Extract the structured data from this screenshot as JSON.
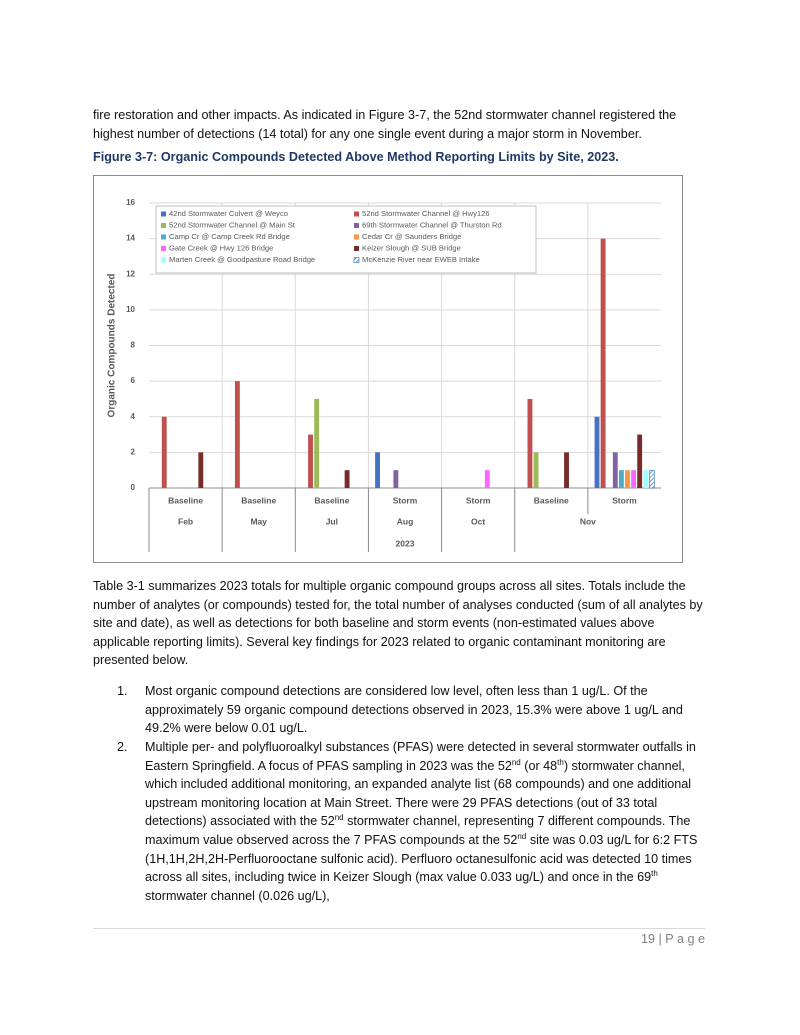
{
  "document": {
    "paragraph_1": "fire restoration and other impacts.  As indicated in Figure 3-7, the 52nd stormwater channel registered the highest number of detections (14 total) for any one single event during a major storm in November.",
    "figure_caption": "Figure 3-7: Organic Compounds Detected Above Method Reporting Limits by Site, 2023.",
    "paragraph_2": "Table 3-1 summarizes 2023 totals for multiple organic compound groups across all sites.  Totals include the number of analytes (or compounds) tested for, the total number of analyses conducted (sum of all analytes by site and date), as well as detections for both baseline and storm events (non-estimated values above applicable reporting limits).  Several key findings for 2023 related to organic contaminant monitoring are presented below.",
    "list": [
      {
        "number": "1.",
        "runs": [
          {
            "text": "Most organic compound detections are considered low level, often less than 1 ug/L.   Of the approximately 59 organic compound detections observed in 2023, 15.3% were above 1 ug/L and 49.2% were below 0.01 ug/L."
          }
        ]
      },
      {
        "number": "2.",
        "runs": [
          {
            "text": "Multiple per- and polyfluoroalkyl substances (PFAS) were detected in several stormwater outfalls in Eastern Springfield.  A focus of PFAS sampling in 2023 was the 52"
          },
          {
            "sup": "nd"
          },
          {
            "text": " (or 48"
          },
          {
            "sup": "th"
          },
          {
            "text": ") stormwater channel, which included additional monitoring, an expanded analyte list (68 compounds) and one additional upstream monitoring location at Main Street.  There were 29 PFAS detections (out of 33 total detections) associated with the 52"
          },
          {
            "sup": "nd"
          },
          {
            "text": " stormwater channel, representing 7 different compounds.  The maximum value observed across the 7 PFAS compounds at the 52"
          },
          {
            "sup": "nd"
          },
          {
            "text": " site was 0.03 ug/L for 6:2 FTS (1H,1H,2H,2H-Perfluorooctane sulfonic acid).  Perfluoro octanesulfonic acid was detected 10 times across all sites, including twice in Keizer Slough (max value 0.033 ug/L) and once in the 69"
          },
          {
            "sup": "th"
          },
          {
            "text": " stormwater channel (0.026 ug/L),"
          }
        ]
      }
    ],
    "footer": "19 | P a g e"
  },
  "chart_data": {
    "type": "bar",
    "y_label": "Organic Compounds Detected",
    "categories": [
      "Baseline",
      "Baseline",
      "Baseline",
      "Storm",
      "Storm",
      "Baseline",
      "Storm"
    ],
    "category_groups": [
      "Feb",
      "May",
      "Jul",
      "Aug",
      "Oct",
      "Nov",
      null
    ],
    "x_label": "2023",
    "ylim": [
      0,
      16
    ],
    "yticks": [
      0,
      2,
      4,
      6,
      8,
      10,
      12,
      14,
      16
    ],
    "grid": true,
    "legend": "top-left",
    "series": [
      {
        "name": "42nd Stormwater Culvert @ Weyco",
        "color": "#4472c4",
        "values": [
          null,
          null,
          null,
          2,
          null,
          null,
          4
        ]
      },
      {
        "name": "52nd Stormwater Channel @ Hwy126",
        "color": "#c0504d",
        "values": [
          4,
          6,
          3,
          null,
          null,
          5,
          14
        ]
      },
      {
        "name": "52nd Stormwater Channel @ Main St",
        "color": "#9bbb59",
        "values": [
          null,
          null,
          5,
          null,
          null,
          2,
          null
        ]
      },
      {
        "name": "69th Stormwater Channel @ Thurston Rd",
        "color": "#8064a2",
        "values": [
          null,
          null,
          null,
          1,
          null,
          null,
          2
        ]
      },
      {
        "name": "Camp Cr @ Camp Creek Rd Bridge",
        "color": "#4bacc6",
        "values": [
          null,
          null,
          null,
          null,
          null,
          null,
          1
        ]
      },
      {
        "name": "Cedar Cr @ Saunders Bridge",
        "color": "#f79646",
        "values": [
          null,
          null,
          null,
          null,
          null,
          null,
          1
        ]
      },
      {
        "name": "Gate Creek @ Hwy 126 Bridge",
        "color": "#ff66ff",
        "values": [
          null,
          null,
          null,
          null,
          1,
          null,
          1
        ]
      },
      {
        "name": "Keizer Slough @ SUB Bridge",
        "color": "#772c2a",
        "values": [
          2,
          null,
          1,
          null,
          null,
          2,
          3
        ]
      },
      {
        "name": "Marten Creek @ Goodpasture Road Bridge",
        "color": "#99ffff",
        "values": [
          null,
          null,
          null,
          null,
          null,
          null,
          1
        ]
      },
      {
        "name": "McKenzie River near EWEB Intake",
        "color": "#2e75b6",
        "hatch": true,
        "values": [
          null,
          null,
          null,
          null,
          null,
          null,
          1
        ]
      }
    ]
  }
}
